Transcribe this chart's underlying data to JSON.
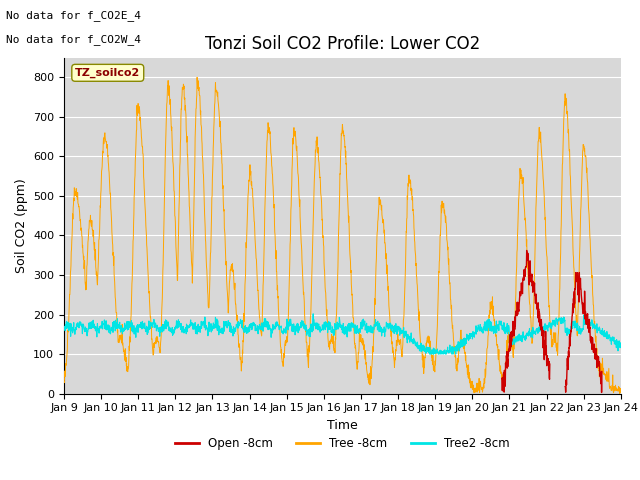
{
  "title": "Tonzi Soil CO2 Profile: Lower CO2",
  "ylabel": "Soil CO2 (ppm)",
  "xlabel": "Time",
  "annotation_line1": "No data for f_CO2E_4",
  "annotation_line2": "No data for f_CO2W_4",
  "tag_label": "TZ_soilco2",
  "ylim": [
    0,
    850
  ],
  "yticks": [
    0,
    100,
    200,
    300,
    400,
    500,
    600,
    700,
    800
  ],
  "xtick_labels": [
    "Jan 9",
    "Jan 10",
    "Jan 11",
    "Jan 12",
    "Jan 13",
    "Jan 14",
    "Jan 15",
    "Jan 16",
    "Jan 17",
    "Jan 18",
    "Jan 19",
    "Jan 20",
    "Jan 21",
    "Jan 22",
    "Jan 23",
    "Jan 24"
  ],
  "background_color": "#d8d8d8",
  "line_open_color": "#cc0000",
  "line_tree_color": "#ffa500",
  "line_tree2_color": "#00e5e5",
  "legend_labels": [
    "Open -8cm",
    "Tree -8cm",
    "Tree2 -8cm"
  ],
  "title_fontsize": 12,
  "axis_fontsize": 9,
  "tick_fontsize": 8,
  "annotation_fontsize": 8,
  "tag_fontsize": 8
}
